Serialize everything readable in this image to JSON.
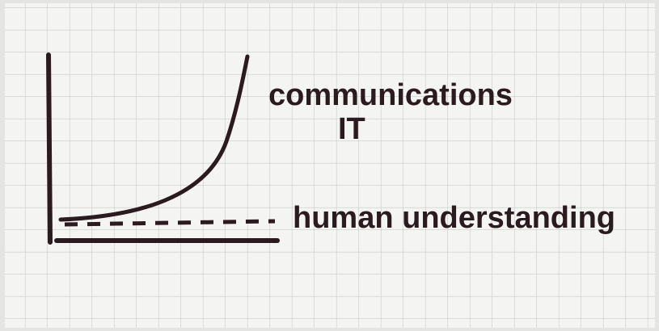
{
  "curve_label": {
    "line1": "communications",
    "line2": "IT"
  },
  "dashed_label": "human understanding"
}
